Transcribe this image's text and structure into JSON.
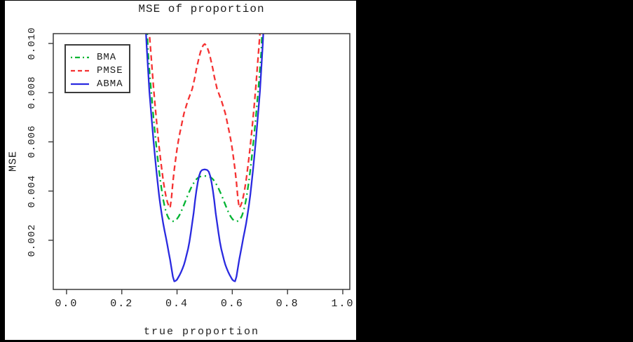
{
  "window": {
    "background": "#000000",
    "panel_background": "#ffffff"
  },
  "colors": {
    "axis": "#3a3a3a",
    "text": "#1c1c1c",
    "bma_green": "#00b432",
    "pmse_red": "#f53232",
    "abma_blue": "#2a2ae0"
  },
  "chart_data": {
    "type": "line",
    "title": "MSE of proportion",
    "xlabel": "true proportion",
    "ylabel": "MSE",
    "xlim": [
      -0.048,
      1.0254
    ],
    "ylim": [
      0,
      0.0104
    ],
    "grid": false,
    "legend_position": "top-left",
    "x_ticks": [
      {
        "value": 0.0,
        "label": "0.0"
      },
      {
        "value": 0.2,
        "label": "0.2"
      },
      {
        "value": 0.4,
        "label": "0.4"
      },
      {
        "value": 0.6,
        "label": "0.6"
      },
      {
        "value": 0.8,
        "label": "0.8"
      },
      {
        "value": 1.0,
        "label": "1.0"
      }
    ],
    "y_ticks": [
      {
        "value": 0.002,
        "label": "0.002"
      },
      {
        "value": 0.004,
        "label": "0.004"
      },
      {
        "value": 0.006,
        "label": "0.006"
      },
      {
        "value": 0.008,
        "label": "0.008"
      },
      {
        "value": 0.01,
        "label": "0.010"
      }
    ],
    "series": [
      {
        "name": "BMA",
        "color": "#00b432",
        "style": "dashdot",
        "width": 2.3,
        "points": [
          [
            0.29,
            0.011
          ],
          [
            0.295,
            0.00965
          ],
          [
            0.3,
            0.00893
          ],
          [
            0.305,
            0.00824
          ],
          [
            0.31,
            0.00759
          ],
          [
            0.315,
            0.00697
          ],
          [
            0.32,
            0.00638
          ],
          [
            0.325,
            0.00583
          ],
          [
            0.33,
            0.00531
          ],
          [
            0.335,
            0.00483
          ],
          [
            0.34,
            0.00439
          ],
          [
            0.345,
            0.004
          ],
          [
            0.35,
            0.00366
          ],
          [
            0.355,
            0.00338
          ],
          [
            0.36,
            0.00316
          ],
          [
            0.365,
            0.003
          ],
          [
            0.37,
            0.00289
          ],
          [
            0.375,
            0.00282
          ],
          [
            0.38,
            0.00278
          ],
          [
            0.385,
            0.00277
          ],
          [
            0.39,
            0.00278
          ],
          [
            0.395,
            0.00281
          ],
          [
            0.4,
            0.00287
          ],
          [
            0.405,
            0.00295
          ],
          [
            0.41,
            0.00305
          ],
          [
            0.415,
            0.00317
          ],
          [
            0.42,
            0.0033
          ],
          [
            0.425,
            0.00344
          ],
          [
            0.43,
            0.00358
          ],
          [
            0.435,
            0.00372
          ],
          [
            0.44,
            0.00386
          ],
          [
            0.445,
            0.00399
          ],
          [
            0.45,
            0.00411
          ],
          [
            0.455,
            0.00422
          ],
          [
            0.46,
            0.00432
          ],
          [
            0.465,
            0.00441
          ],
          [
            0.47,
            0.00448
          ],
          [
            0.475,
            0.00453
          ],
          [
            0.48,
            0.00457
          ],
          [
            0.485,
            0.00459
          ],
          [
            0.49,
            0.0046
          ],
          [
            0.495,
            0.00461
          ],
          [
            0.5,
            0.00461
          ],
          [
            0.505,
            0.00461
          ],
          [
            0.51,
            0.0046
          ],
          [
            0.515,
            0.00459
          ],
          [
            0.52,
            0.00457
          ],
          [
            0.525,
            0.00453
          ],
          [
            0.53,
            0.00448
          ],
          [
            0.535,
            0.00441
          ],
          [
            0.54,
            0.00432
          ],
          [
            0.545,
            0.00422
          ],
          [
            0.55,
            0.00411
          ],
          [
            0.555,
            0.00399
          ],
          [
            0.56,
            0.00386
          ],
          [
            0.565,
            0.00372
          ],
          [
            0.57,
            0.00358
          ],
          [
            0.575,
            0.00344
          ],
          [
            0.58,
            0.0033
          ],
          [
            0.585,
            0.00317
          ],
          [
            0.59,
            0.00305
          ],
          [
            0.595,
            0.00295
          ],
          [
            0.6,
            0.00287
          ],
          [
            0.605,
            0.00281
          ],
          [
            0.61,
            0.00278
          ],
          [
            0.615,
            0.00277
          ],
          [
            0.62,
            0.00278
          ],
          [
            0.625,
            0.00282
          ],
          [
            0.63,
            0.00289
          ],
          [
            0.635,
            0.003
          ],
          [
            0.64,
            0.00316
          ],
          [
            0.645,
            0.00338
          ],
          [
            0.65,
            0.00366
          ],
          [
            0.655,
            0.004
          ],
          [
            0.66,
            0.00439
          ],
          [
            0.665,
            0.00483
          ],
          [
            0.67,
            0.00531
          ],
          [
            0.675,
            0.00583
          ],
          [
            0.68,
            0.00638
          ],
          [
            0.685,
            0.00697
          ],
          [
            0.69,
            0.00759
          ],
          [
            0.695,
            0.00824
          ],
          [
            0.7,
            0.00893
          ],
          [
            0.705,
            0.00965
          ],
          [
            0.71,
            0.011
          ]
        ]
      },
      {
        "name": "PMSE",
        "color": "#f53232",
        "style": "dashed",
        "width": 2.3,
        "points": [
          [
            0.295,
            0.011
          ],
          [
            0.3,
            0.0104
          ],
          [
            0.305,
            0.00966
          ],
          [
            0.31,
            0.00892
          ],
          [
            0.315,
            0.00822
          ],
          [
            0.32,
            0.00756
          ],
          [
            0.325,
            0.00694
          ],
          [
            0.33,
            0.00636
          ],
          [
            0.335,
            0.00582
          ],
          [
            0.34,
            0.00532
          ],
          [
            0.345,
            0.00486
          ],
          [
            0.35,
            0.00444
          ],
          [
            0.355,
            0.00408
          ],
          [
            0.36,
            0.00378
          ],
          [
            0.365,
            0.00355
          ],
          [
            0.37,
            0.0034
          ],
          [
            0.375,
            0.00332
          ],
          [
            0.38,
            0.00375
          ],
          [
            0.385,
            0.00435
          ],
          [
            0.39,
            0.00487
          ],
          [
            0.395,
            0.0053
          ],
          [
            0.4,
            0.0057
          ],
          [
            0.405,
            0.00605
          ],
          [
            0.41,
            0.00635
          ],
          [
            0.415,
            0.00662
          ],
          [
            0.42,
            0.00688
          ],
          [
            0.425,
            0.00715
          ],
          [
            0.43,
            0.00734
          ],
          [
            0.435,
            0.00752
          ],
          [
            0.44,
            0.0077
          ],
          [
            0.445,
            0.00785
          ],
          [
            0.45,
            0.008
          ],
          [
            0.455,
            0.00815
          ],
          [
            0.46,
            0.0084
          ],
          [
            0.465,
            0.00865
          ],
          [
            0.47,
            0.00895
          ],
          [
            0.475,
            0.0092
          ],
          [
            0.48,
            0.00945
          ],
          [
            0.485,
            0.00965
          ],
          [
            0.49,
            0.00982
          ],
          [
            0.495,
            0.00993
          ],
          [
            0.5,
            0.00998
          ],
          [
            0.505,
            0.00993
          ],
          [
            0.51,
            0.00982
          ],
          [
            0.515,
            0.00965
          ],
          [
            0.52,
            0.00945
          ],
          [
            0.525,
            0.0092
          ],
          [
            0.53,
            0.00895
          ],
          [
            0.535,
            0.00865
          ],
          [
            0.54,
            0.0084
          ],
          [
            0.545,
            0.00815
          ],
          [
            0.55,
            0.008
          ],
          [
            0.555,
            0.00785
          ],
          [
            0.56,
            0.0077
          ],
          [
            0.565,
            0.00752
          ],
          [
            0.57,
            0.00734
          ],
          [
            0.575,
            0.00715
          ],
          [
            0.58,
            0.00688
          ],
          [
            0.585,
            0.00662
          ],
          [
            0.59,
            0.00635
          ],
          [
            0.595,
            0.00605
          ],
          [
            0.6,
            0.0057
          ],
          [
            0.605,
            0.0053
          ],
          [
            0.61,
            0.00487
          ],
          [
            0.615,
            0.00435
          ],
          [
            0.62,
            0.00375
          ],
          [
            0.625,
            0.00332
          ],
          [
            0.63,
            0.0034
          ],
          [
            0.635,
            0.00355
          ],
          [
            0.64,
            0.00378
          ],
          [
            0.645,
            0.00408
          ],
          [
            0.65,
            0.00444
          ],
          [
            0.655,
            0.00486
          ],
          [
            0.66,
            0.00532
          ],
          [
            0.665,
            0.00582
          ],
          [
            0.67,
            0.00636
          ],
          [
            0.675,
            0.00694
          ],
          [
            0.68,
            0.00756
          ],
          [
            0.685,
            0.00822
          ],
          [
            0.69,
            0.00892
          ],
          [
            0.695,
            0.00966
          ],
          [
            0.7,
            0.0104
          ],
          [
            0.705,
            0.011
          ]
        ]
      },
      {
        "name": "ABMA",
        "color": "#2a2ae0",
        "style": "solid",
        "width": 2.3,
        "points": [
          [
            0.285,
            0.011
          ],
          [
            0.29,
            0.0099
          ],
          [
            0.295,
            0.00895
          ],
          [
            0.3,
            0.00805
          ],
          [
            0.305,
            0.00735
          ],
          [
            0.31,
            0.00668
          ],
          [
            0.315,
            0.00604
          ],
          [
            0.32,
            0.00543
          ],
          [
            0.325,
            0.00485
          ],
          [
            0.33,
            0.00432
          ],
          [
            0.335,
            0.00383
          ],
          [
            0.34,
            0.0034
          ],
          [
            0.345,
            0.00302
          ],
          [
            0.35,
            0.00268
          ],
          [
            0.355,
            0.00238
          ],
          [
            0.36,
            0.0021
          ],
          [
            0.365,
            0.0018
          ],
          [
            0.37,
            0.0015
          ],
          [
            0.375,
            0.0012
          ],
          [
            0.38,
            0.00085
          ],
          [
            0.385,
            0.00052
          ],
          [
            0.39,
            0.00033
          ],
          [
            0.395,
            0.00035
          ],
          [
            0.4,
            0.0004
          ],
          [
            0.405,
            0.0005
          ],
          [
            0.41,
            0.0006
          ],
          [
            0.415,
            0.00072
          ],
          [
            0.42,
            0.00085
          ],
          [
            0.425,
            0.001
          ],
          [
            0.43,
            0.0012
          ],
          [
            0.435,
            0.00142
          ],
          [
            0.44,
            0.00165
          ],
          [
            0.445,
            0.00195
          ],
          [
            0.45,
            0.0023
          ],
          [
            0.455,
            0.0027
          ],
          [
            0.46,
            0.0031
          ],
          [
            0.465,
            0.0036
          ],
          [
            0.47,
            0.004
          ],
          [
            0.475,
            0.00435
          ],
          [
            0.48,
            0.00462
          ],
          [
            0.485,
            0.00478
          ],
          [
            0.49,
            0.00485
          ],
          [
            0.495,
            0.00487
          ],
          [
            0.5,
            0.00488
          ],
          [
            0.505,
            0.00487
          ],
          [
            0.51,
            0.00485
          ],
          [
            0.515,
            0.00478
          ],
          [
            0.52,
            0.00462
          ],
          [
            0.525,
            0.00435
          ],
          [
            0.53,
            0.004
          ],
          [
            0.535,
            0.0036
          ],
          [
            0.54,
            0.0031
          ],
          [
            0.545,
            0.0027
          ],
          [
            0.55,
            0.0023
          ],
          [
            0.555,
            0.00195
          ],
          [
            0.56,
            0.00165
          ],
          [
            0.565,
            0.00142
          ],
          [
            0.57,
            0.0012
          ],
          [
            0.575,
            0.001
          ],
          [
            0.58,
            0.00085
          ],
          [
            0.585,
            0.00072
          ],
          [
            0.59,
            0.0006
          ],
          [
            0.595,
            0.0005
          ],
          [
            0.6,
            0.0004
          ],
          [
            0.605,
            0.00035
          ],
          [
            0.61,
            0.00033
          ],
          [
            0.615,
            0.00052
          ],
          [
            0.62,
            0.00085
          ],
          [
            0.625,
            0.0012
          ],
          [
            0.63,
            0.0015
          ],
          [
            0.635,
            0.0018
          ],
          [
            0.64,
            0.0021
          ],
          [
            0.645,
            0.00238
          ],
          [
            0.65,
            0.00268
          ],
          [
            0.655,
            0.00302
          ],
          [
            0.66,
            0.0034
          ],
          [
            0.665,
            0.00383
          ],
          [
            0.67,
            0.00432
          ],
          [
            0.675,
            0.00485
          ],
          [
            0.68,
            0.00543
          ],
          [
            0.685,
            0.00604
          ],
          [
            0.69,
            0.00668
          ],
          [
            0.695,
            0.00735
          ],
          [
            0.7,
            0.00805
          ],
          [
            0.705,
            0.00895
          ],
          [
            0.71,
            0.0099
          ],
          [
            0.715,
            0.011
          ]
        ]
      }
    ]
  }
}
